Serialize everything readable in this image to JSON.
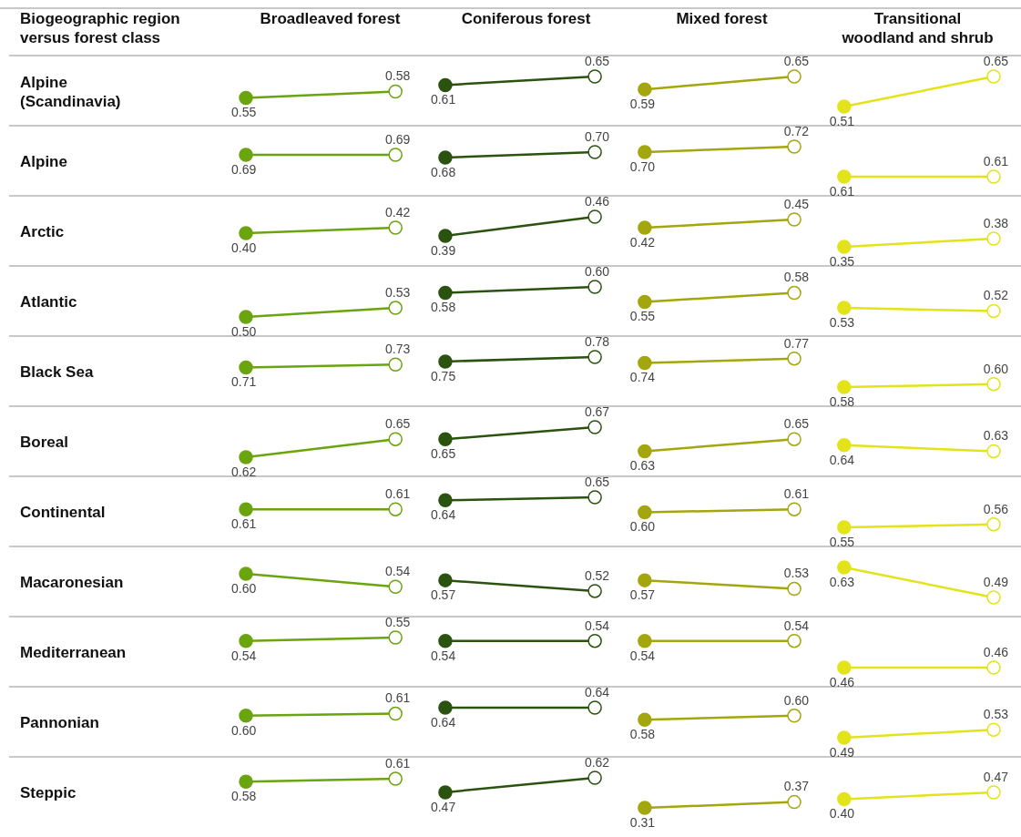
{
  "chart_data": [
    {
      "type": "other",
      "title": "Biogeographic region versus forest class",
      "categories": [
        "Broadleaved forest",
        "Coniferous forest",
        "Mixed forest",
        "Transitional woodland and shrub"
      ],
      "y_categories": [
        "Alpine (Scandinavia)",
        "Alpine",
        "Arctic",
        "Atlantic",
        "Black Sea",
        "Boreal",
        "Continental",
        "Macaronesian",
        "Mediterranean",
        "Pannonian",
        "Steppic"
      ]
    },
    {
      "type": "line",
      "marker": "circle",
      "categories": [
        null,
        null,
        null,
        null,
        null,
        null,
        null,
        null,
        null,
        null,
        null,
        null,
        null,
        null,
        null,
        null
      ],
      "series": [
        {
          "color": "#6aa40f",
          "values": [
            0.55,
            null,
            null,
            0.58,
            null,
            null,
            null,
            null,
            null,
            null,
            null,
            null,
            null,
            null,
            null,
            null
          ],
          "value_labels": [
            "0.55",
            null,
            null,
            "0.58",
            null,
            null,
            null,
            null,
            null,
            null,
            null,
            null,
            null,
            null,
            null,
            null
          ]
        },
        {
          "color": "#2b5310",
          "values": [
            null,
            null,
            null,
            null,
            0.61,
            null,
            null,
            0.65,
            null,
            null,
            null,
            null,
            null,
            null,
            null,
            null
          ],
          "value_labels": [
            null,
            null,
            null,
            null,
            "0.61",
            null,
            null,
            "0.65",
            null,
            null,
            null,
            null,
            null,
            null,
            null,
            null
          ]
        },
        {
          "color": "#a3a60d",
          "values": [
            null,
            null,
            null,
            null,
            null,
            null,
            null,
            null,
            0.59,
            null,
            null,
            0.65,
            null,
            null,
            null,
            null
          ],
          "value_labels": [
            null,
            null,
            null,
            null,
            null,
            null,
            null,
            null,
            "0.59",
            null,
            null,
            "0.65",
            null,
            null,
            null,
            null
          ]
        },
        {
          "color": "#e3e31a",
          "values": [
            null,
            null,
            null,
            null,
            null,
            null,
            null,
            null,
            null,
            null,
            null,
            null,
            0.51,
            null,
            null,
            0.65
          ],
          "value_labels": [
            null,
            null,
            null,
            null,
            null,
            null,
            null,
            null,
            null,
            null,
            null,
            null,
            "0.51",
            null,
            null,
            "0.65"
          ]
        }
      ]
    },
    {
      "type": "line",
      "marker": "circle",
      "categories": [
        null,
        null,
        null,
        null,
        null,
        null,
        null,
        null,
        null,
        null,
        null,
        null,
        null,
        null,
        null,
        null
      ],
      "series": [
        {
          "color": "#6aa40f",
          "values": [
            0.69,
            null,
            null,
            0.69,
            null,
            null,
            null,
            null,
            null,
            null,
            null,
            null,
            null,
            null,
            null,
            null
          ],
          "value_labels": [
            "0.69",
            null,
            null,
            "0.69",
            null,
            null,
            null,
            null,
            null,
            null,
            null,
            null,
            null,
            null,
            null,
            null
          ]
        },
        {
          "color": "#2b5310",
          "values": [
            null,
            null,
            null,
            null,
            0.68,
            null,
            null,
            0.7,
            null,
            null,
            null,
            null,
            null,
            null,
            null,
            null
          ],
          "value_labels": [
            null,
            null,
            null,
            null,
            "0.68",
            null,
            null,
            "0.70",
            null,
            null,
            null,
            null,
            null,
            null,
            null,
            null
          ]
        },
        {
          "color": "#a3a60d",
          "values": [
            null,
            null,
            null,
            null,
            null,
            null,
            null,
            null,
            0.7,
            null,
            null,
            0.72,
            null,
            null,
            null,
            null
          ],
          "value_labels": [
            null,
            null,
            null,
            null,
            null,
            null,
            null,
            null,
            "0.70",
            null,
            null,
            "0.72",
            null,
            null,
            null,
            null
          ]
        },
        {
          "color": "#e3e31a",
          "values": [
            null,
            null,
            null,
            null,
            null,
            null,
            null,
            null,
            null,
            null,
            null,
            null,
            0.61,
            null,
            null,
            0.61
          ],
          "value_labels": [
            null,
            null,
            null,
            null,
            null,
            null,
            null,
            null,
            null,
            null,
            null,
            null,
            "0.61",
            null,
            null,
            "0.61"
          ]
        }
      ]
    },
    {
      "type": "line",
      "marker": "circle",
      "categories": [
        null,
        null,
        null,
        null,
        null,
        null,
        null,
        null,
        null,
        null,
        null,
        null,
        null,
        null,
        null,
        null
      ],
      "series": [
        {
          "color": "#6aa40f",
          "values": [
            0.4,
            null,
            null,
            0.42,
            null,
            null,
            null,
            null,
            null,
            null,
            null,
            null,
            null,
            null,
            null,
            null
          ],
          "value_labels": [
            "0.40",
            null,
            null,
            "0.42",
            null,
            null,
            null,
            null,
            null,
            null,
            null,
            null,
            null,
            null,
            null,
            null
          ]
        },
        {
          "color": "#2b5310",
          "values": [
            null,
            null,
            null,
            null,
            0.39,
            null,
            null,
            0.46,
            null,
            null,
            null,
            null,
            null,
            null,
            null,
            null
          ],
          "value_labels": [
            null,
            null,
            null,
            null,
            "0.39",
            null,
            null,
            "0.46",
            null,
            null,
            null,
            null,
            null,
            null,
            null,
            null
          ]
        },
        {
          "color": "#a3a60d",
          "values": [
            null,
            null,
            null,
            null,
            null,
            null,
            null,
            null,
            0.42,
            null,
            null,
            0.45,
            null,
            null,
            null,
            null
          ],
          "value_labels": [
            null,
            null,
            null,
            null,
            null,
            null,
            null,
            null,
            "0.42",
            null,
            null,
            "0.45",
            null,
            null,
            null,
            null
          ]
        },
        {
          "color": "#e3e31a",
          "values": [
            null,
            null,
            null,
            null,
            null,
            null,
            null,
            null,
            null,
            null,
            null,
            null,
            0.35,
            null,
            null,
            0.38
          ],
          "value_labels": [
            null,
            null,
            null,
            null,
            null,
            null,
            null,
            null,
            null,
            null,
            null,
            null,
            "0.35",
            null,
            null,
            "0.38"
          ]
        }
      ]
    },
    {
      "type": "line",
      "marker": "circle",
      "categories": [
        null,
        null,
        null,
        null,
        null,
        null,
        null,
        null,
        null,
        null,
        null,
        null,
        null,
        null,
        null,
        null
      ],
      "series": [
        {
          "color": "#6aa40f",
          "values": [
            0.5,
            null,
            null,
            0.53,
            null,
            null,
            null,
            null,
            null,
            null,
            null,
            null,
            null,
            null,
            null,
            null
          ],
          "value_labels": [
            "0.50",
            null,
            null,
            "0.53",
            null,
            null,
            null,
            null,
            null,
            null,
            null,
            null,
            null,
            null,
            null,
            null
          ]
        },
        {
          "color": "#2b5310",
          "values": [
            null,
            null,
            null,
            null,
            0.58,
            null,
            null,
            0.6,
            null,
            null,
            null,
            null,
            null,
            null,
            null,
            null
          ],
          "value_labels": [
            null,
            null,
            null,
            null,
            "0.58",
            null,
            null,
            "0.60",
            null,
            null,
            null,
            null,
            null,
            null,
            null,
            null
          ]
        },
        {
          "color": "#a3a60d",
          "values": [
            null,
            null,
            null,
            null,
            null,
            null,
            null,
            null,
            0.55,
            null,
            null,
            0.58,
            null,
            null,
            null,
            null
          ],
          "value_labels": [
            null,
            null,
            null,
            null,
            null,
            null,
            null,
            null,
            "0.55",
            null,
            null,
            "0.58",
            null,
            null,
            null,
            null
          ]
        },
        {
          "color": "#e3e31a",
          "values": [
            null,
            null,
            null,
            null,
            null,
            null,
            null,
            null,
            null,
            null,
            null,
            null,
            0.53,
            null,
            null,
            0.52
          ],
          "value_labels": [
            null,
            null,
            null,
            null,
            null,
            null,
            null,
            null,
            null,
            null,
            null,
            null,
            "0.53",
            null,
            null,
            "0.52"
          ]
        }
      ]
    },
    {
      "type": "line",
      "marker": "circle",
      "categories": [
        null,
        null,
        null,
        null,
        null,
        null,
        null,
        null,
        null,
        null,
        null,
        null,
        null,
        null,
        null,
        null
      ],
      "series": [
        {
          "color": "#6aa40f",
          "values": [
            0.71,
            null,
            null,
            0.73,
            null,
            null,
            null,
            null,
            null,
            null,
            null,
            null,
            null,
            null,
            null,
            null
          ],
          "value_labels": [
            "0.71",
            null,
            null,
            "0.73",
            null,
            null,
            null,
            null,
            null,
            null,
            null,
            null,
            null,
            null,
            null,
            null
          ]
        },
        {
          "color": "#2b5310",
          "values": [
            null,
            null,
            null,
            null,
            0.75,
            null,
            null,
            0.78,
            null,
            null,
            null,
            null,
            null,
            null,
            null,
            null
          ],
          "value_labels": [
            null,
            null,
            null,
            null,
            "0.75",
            null,
            null,
            "0.78",
            null,
            null,
            null,
            null,
            null,
            null,
            null,
            null
          ]
        },
        {
          "color": "#a3a60d",
          "values": [
            null,
            null,
            null,
            null,
            null,
            null,
            null,
            null,
            0.74,
            null,
            null,
            0.77,
            null,
            null,
            null,
            null
          ],
          "value_labels": [
            null,
            null,
            null,
            null,
            null,
            null,
            null,
            null,
            "0.74",
            null,
            null,
            "0.77",
            null,
            null,
            null,
            null
          ]
        },
        {
          "color": "#e3e31a",
          "values": [
            null,
            null,
            null,
            null,
            null,
            null,
            null,
            null,
            null,
            null,
            null,
            null,
            0.58,
            null,
            null,
            0.6
          ],
          "value_labels": [
            null,
            null,
            null,
            null,
            null,
            null,
            null,
            null,
            null,
            null,
            null,
            null,
            "0.58",
            null,
            null,
            "0.60"
          ]
        }
      ]
    },
    {
      "type": "line",
      "marker": "circle",
      "categories": [
        null,
        null,
        null,
        null,
        null,
        null,
        null,
        null,
        null,
        null,
        null,
        null,
        null,
        null,
        null,
        null
      ],
      "series": [
        {
          "color": "#6aa40f",
          "values": [
            0.62,
            null,
            null,
            0.65,
            null,
            null,
            null,
            null,
            null,
            null,
            null,
            null,
            null,
            null,
            null,
            null
          ],
          "value_labels": [
            "0.62",
            null,
            null,
            "0.65",
            null,
            null,
            null,
            null,
            null,
            null,
            null,
            null,
            null,
            null,
            null,
            null
          ]
        },
        {
          "color": "#2b5310",
          "values": [
            null,
            null,
            null,
            null,
            0.65,
            null,
            null,
            0.67,
            null,
            null,
            null,
            null,
            null,
            null,
            null,
            null
          ],
          "value_labels": [
            null,
            null,
            null,
            null,
            "0.65",
            null,
            null,
            "0.67",
            null,
            null,
            null,
            null,
            null,
            null,
            null,
            null
          ]
        },
        {
          "color": "#a3a60d",
          "values": [
            null,
            null,
            null,
            null,
            null,
            null,
            null,
            null,
            0.63,
            null,
            null,
            0.65,
            null,
            null,
            null,
            null
          ],
          "value_labels": [
            null,
            null,
            null,
            null,
            null,
            null,
            null,
            null,
            "0.63",
            null,
            null,
            "0.65",
            null,
            null,
            null,
            null
          ]
        },
        {
          "color": "#e3e31a",
          "values": [
            null,
            null,
            null,
            null,
            null,
            null,
            null,
            null,
            null,
            null,
            null,
            null,
            0.64,
            null,
            null,
            0.63
          ],
          "value_labels": [
            null,
            null,
            null,
            null,
            null,
            null,
            null,
            null,
            null,
            null,
            null,
            null,
            "0.64",
            null,
            null,
            "0.63"
          ]
        }
      ]
    },
    {
      "type": "line",
      "marker": "circle",
      "categories": [
        null,
        null,
        null,
        null,
        null,
        null,
        null,
        null,
        null,
        null,
        null,
        null,
        null,
        null,
        null,
        null
      ],
      "series": [
        {
          "color": "#6aa40f",
          "values": [
            0.61,
            null,
            null,
            0.61,
            null,
            null,
            null,
            null,
            null,
            null,
            null,
            null,
            null,
            null,
            null,
            null
          ],
          "value_labels": [
            "0.61",
            null,
            null,
            "0.61",
            null,
            null,
            null,
            null,
            null,
            null,
            null,
            null,
            null,
            null,
            null,
            null
          ]
        },
        {
          "color": "#2b5310",
          "values": [
            null,
            null,
            null,
            null,
            0.64,
            null,
            null,
            0.65,
            null,
            null,
            null,
            null,
            null,
            null,
            null,
            null
          ],
          "value_labels": [
            null,
            null,
            null,
            null,
            "0.64",
            null,
            null,
            "0.65",
            null,
            null,
            null,
            null,
            null,
            null,
            null,
            null
          ]
        },
        {
          "color": "#a3a60d",
          "values": [
            null,
            null,
            null,
            null,
            null,
            null,
            null,
            null,
            0.6,
            null,
            null,
            0.61,
            null,
            null,
            null,
            null
          ],
          "value_labels": [
            null,
            null,
            null,
            null,
            null,
            null,
            null,
            null,
            "0.60",
            null,
            null,
            "0.61",
            null,
            null,
            null,
            null
          ]
        },
        {
          "color": "#e3e31a",
          "values": [
            null,
            null,
            null,
            null,
            null,
            null,
            null,
            null,
            null,
            null,
            null,
            null,
            0.55,
            null,
            null,
            0.56
          ],
          "value_labels": [
            null,
            null,
            null,
            null,
            null,
            null,
            null,
            null,
            null,
            null,
            null,
            null,
            "0.55",
            null,
            null,
            "0.56"
          ]
        }
      ]
    },
    {
      "type": "line",
      "marker": "circle",
      "categories": [
        null,
        null,
        null,
        null,
        null,
        null,
        null,
        null,
        null,
        null,
        null,
        null,
        null,
        null,
        null,
        null
      ],
      "series": [
        {
          "color": "#6aa40f",
          "values": [
            0.6,
            null,
            null,
            0.54,
            null,
            null,
            null,
            null,
            null,
            null,
            null,
            null,
            null,
            null,
            null,
            null
          ],
          "value_labels": [
            "0.60",
            null,
            null,
            "0.54",
            null,
            null,
            null,
            null,
            null,
            null,
            null,
            null,
            null,
            null,
            null,
            null
          ]
        },
        {
          "color": "#2b5310",
          "values": [
            null,
            null,
            null,
            null,
            0.57,
            null,
            null,
            0.52,
            null,
            null,
            null,
            null,
            null,
            null,
            null,
            null
          ],
          "value_labels": [
            null,
            null,
            null,
            null,
            "0.57",
            null,
            null,
            "0.52",
            null,
            null,
            null,
            null,
            null,
            null,
            null,
            null
          ]
        },
        {
          "color": "#a3a60d",
          "values": [
            null,
            null,
            null,
            null,
            null,
            null,
            null,
            null,
            0.57,
            null,
            null,
            0.53,
            null,
            null,
            null,
            null
          ],
          "value_labels": [
            null,
            null,
            null,
            null,
            null,
            null,
            null,
            null,
            "0.57",
            null,
            null,
            "0.53",
            null,
            null,
            null,
            null
          ]
        },
        {
          "color": "#e3e31a",
          "values": [
            null,
            null,
            null,
            null,
            null,
            null,
            null,
            null,
            null,
            null,
            null,
            null,
            0.63,
            null,
            null,
            0.49
          ],
          "value_labels": [
            null,
            null,
            null,
            null,
            null,
            null,
            null,
            null,
            null,
            null,
            null,
            null,
            "0.63",
            null,
            null,
            "0.49"
          ]
        }
      ]
    },
    {
      "type": "line",
      "marker": "circle",
      "categories": [
        null,
        null,
        null,
        null,
        null,
        null,
        null,
        null,
        null,
        null,
        null,
        null,
        null,
        null,
        null,
        null
      ],
      "series": [
        {
          "color": "#6aa40f",
          "values": [
            0.54,
            null,
            null,
            0.55,
            null,
            null,
            null,
            null,
            null,
            null,
            null,
            null,
            null,
            null,
            null,
            null
          ],
          "value_labels": [
            "0.54",
            null,
            null,
            "0.55",
            null,
            null,
            null,
            null,
            null,
            null,
            null,
            null,
            null,
            null,
            null,
            null
          ]
        },
        {
          "color": "#2b5310",
          "values": [
            null,
            null,
            null,
            null,
            0.54,
            null,
            null,
            0.54,
            null,
            null,
            null,
            null,
            null,
            null,
            null,
            null
          ],
          "value_labels": [
            null,
            null,
            null,
            null,
            "0.54",
            null,
            null,
            "0.54",
            null,
            null,
            null,
            null,
            null,
            null,
            null,
            null
          ]
        },
        {
          "color": "#a3a60d",
          "values": [
            null,
            null,
            null,
            null,
            null,
            null,
            null,
            null,
            0.54,
            null,
            null,
            0.54,
            null,
            null,
            null,
            null
          ],
          "value_labels": [
            null,
            null,
            null,
            null,
            null,
            null,
            null,
            null,
            "0.54",
            null,
            null,
            "0.54",
            null,
            null,
            null,
            null
          ]
        },
        {
          "color": "#e3e31a",
          "values": [
            null,
            null,
            null,
            null,
            null,
            null,
            null,
            null,
            null,
            null,
            null,
            null,
            0.46,
            null,
            null,
            0.46
          ],
          "value_labels": [
            null,
            null,
            null,
            null,
            null,
            null,
            null,
            null,
            null,
            null,
            null,
            null,
            "0.46",
            null,
            null,
            "0.46"
          ]
        }
      ]
    },
    {
      "type": "line",
      "marker": "circle",
      "categories": [
        null,
        null,
        null,
        null,
        null,
        null,
        null,
        null,
        null,
        null,
        null,
        null,
        null,
        null,
        null,
        null
      ],
      "series": [
        {
          "color": "#6aa40f",
          "values": [
            0.6,
            null,
            null,
            0.61,
            null,
            null,
            null,
            null,
            null,
            null,
            null,
            null,
            null,
            null,
            null,
            null
          ],
          "value_labels": [
            "0.60",
            null,
            null,
            "0.61",
            null,
            null,
            null,
            null,
            null,
            null,
            null,
            null,
            null,
            null,
            null,
            null
          ]
        },
        {
          "color": "#2b5310",
          "values": [
            null,
            null,
            null,
            null,
            0.64,
            null,
            null,
            0.64,
            null,
            null,
            null,
            null,
            null,
            null,
            null,
            null
          ],
          "value_labels": [
            null,
            null,
            null,
            null,
            "0.64",
            null,
            null,
            "0.64",
            null,
            null,
            null,
            null,
            null,
            null,
            null,
            null
          ]
        },
        {
          "color": "#a3a60d",
          "values": [
            null,
            null,
            null,
            null,
            null,
            null,
            null,
            null,
            0.58,
            null,
            null,
            0.6,
            null,
            null,
            null,
            null
          ],
          "value_labels": [
            null,
            null,
            null,
            null,
            null,
            null,
            null,
            null,
            "0.58",
            null,
            null,
            "0.60",
            null,
            null,
            null,
            null
          ]
        },
        {
          "color": "#e3e31a",
          "values": [
            null,
            null,
            null,
            null,
            null,
            null,
            null,
            null,
            null,
            null,
            null,
            null,
            0.49,
            null,
            null,
            0.53
          ],
          "value_labels": [
            null,
            null,
            null,
            null,
            null,
            null,
            null,
            null,
            null,
            null,
            null,
            null,
            "0.49",
            null,
            null,
            "0.53"
          ]
        }
      ]
    },
    {
      "type": "line",
      "marker": "circle",
      "categories": [
        null,
        null,
        null,
        null,
        null,
        null,
        null,
        null,
        null,
        null,
        null,
        null,
        null,
        null,
        null,
        null
      ],
      "series": [
        {
          "color": "#6aa40f",
          "values": [
            0.58,
            null,
            null,
            0.61,
            null,
            null,
            null,
            null,
            null,
            null,
            null,
            null,
            null,
            null,
            null,
            null
          ],
          "value_labels": [
            "0.58",
            null,
            null,
            "0.61",
            null,
            null,
            null,
            null,
            null,
            null,
            null,
            null,
            null,
            null,
            null,
            null
          ]
        },
        {
          "color": "#2b5310",
          "values": [
            null,
            null,
            null,
            null,
            0.47,
            null,
            null,
            0.62,
            null,
            null,
            null,
            null,
            null,
            null,
            null,
            null
          ],
          "value_labels": [
            null,
            null,
            null,
            null,
            "0.47",
            null,
            null,
            "0.62",
            null,
            null,
            null,
            null,
            null,
            null,
            null,
            null
          ]
        },
        {
          "color": "#a3a60d",
          "values": [
            null,
            null,
            null,
            null,
            null,
            null,
            null,
            null,
            0.31,
            null,
            null,
            0.37,
            null,
            null,
            null,
            null
          ],
          "value_labels": [
            null,
            null,
            null,
            null,
            null,
            null,
            null,
            null,
            "0.31",
            null,
            null,
            "0.37",
            null,
            null,
            null,
            null
          ]
        },
        {
          "color": "#e3e31a",
          "values": [
            null,
            null,
            null,
            null,
            null,
            null,
            null,
            null,
            null,
            null,
            null,
            null,
            0.4,
            null,
            null,
            0.47
          ],
          "value_labels": [
            null,
            null,
            null,
            null,
            null,
            null,
            null,
            null,
            null,
            null,
            null,
            null,
            "0.40",
            null,
            null,
            "0.47"
          ]
        }
      ]
    }
  ]
}
